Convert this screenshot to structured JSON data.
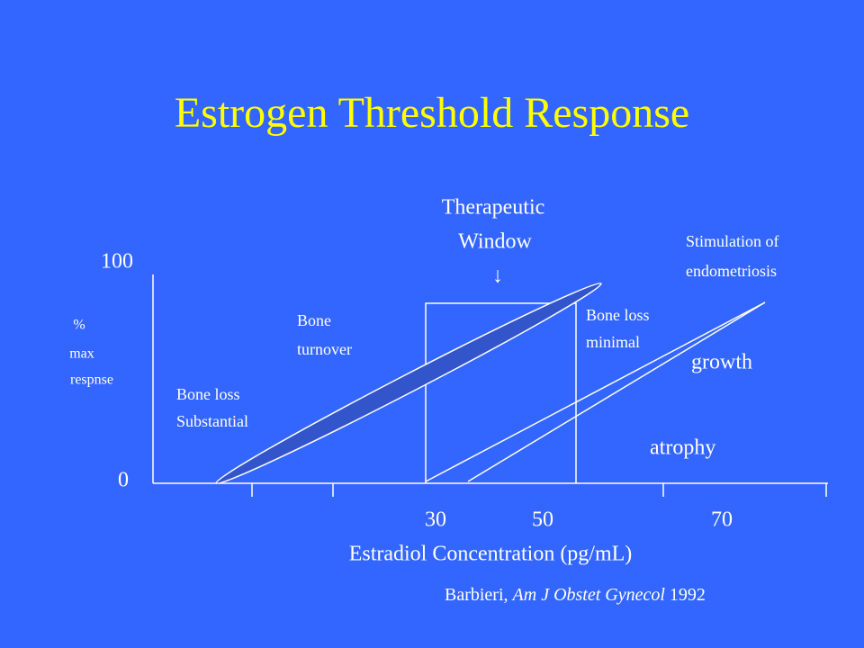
{
  "header": {
    "title": "Estrogen Threshold Response"
  },
  "y_axis": {
    "max_label": "100",
    "min_label": "0",
    "title_lines": [
      "%",
      "max",
      "respnse"
    ]
  },
  "x_axis": {
    "tick_labels": [
      "30",
      "50",
      "70"
    ],
    "title": "Estradiol Concentration (pg/mL)"
  },
  "annotations": {
    "therapeutic_window": [
      "Therapeutic",
      "Window",
      "↓"
    ],
    "bone_loss_substantial": [
      "Bone loss",
      "Substantial"
    ],
    "bone_turnover": [
      "Bone",
      "turnover"
    ],
    "bone_loss_minimal": [
      "Bone loss",
      "minimal"
    ],
    "stimulation": [
      "Stimulation of",
      "endometriosis"
    ],
    "growth": "growth",
    "atrophy": "atrophy"
  },
  "citation": {
    "author": "Barbieri, ",
    "journal": "Am J Obstet Gynecol",
    "year": " 1992"
  }
}
